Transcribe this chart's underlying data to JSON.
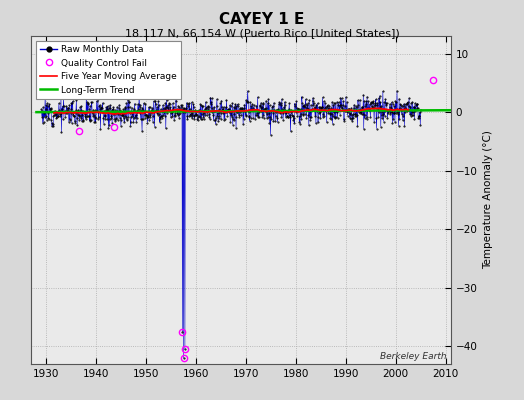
{
  "title": "CAYEY 1 E",
  "subtitle": "18.117 N, 66.154 W (Puerto Rico [United States])",
  "ylabel": "Temperature Anomaly (°C)",
  "watermark": "Berkeley Earth",
  "xlim": [
    1927,
    2011
  ],
  "ylim": [
    -43,
    13
  ],
  "yticks": [
    10,
    0,
    -10,
    -20,
    -30,
    -40
  ],
  "xticks": [
    1930,
    1940,
    1950,
    1960,
    1970,
    1980,
    1990,
    2000,
    2010
  ],
  "background_color": "#d8d8d8",
  "plot_background": "#eaeaea",
  "raw_line_color": "#0000cc",
  "raw_marker_color": "#000000",
  "qc_fail_color": "#ff00ff",
  "moving_avg_color": "#ff0000",
  "trend_color": "#00bb00",
  "noise_seed": 12,
  "data_start_year": 1929,
  "data_end_year": 2005,
  "spike_years": [
    1957.25,
    1957.5,
    1957.75
  ],
  "spike_values": [
    -37.5,
    -42.0,
    -40.5
  ],
  "qc_fail_points": [
    [
      1936.5,
      -3.2
    ],
    [
      1943.5,
      -2.5
    ],
    [
      1957.25,
      -37.5
    ],
    [
      1957.5,
      -42.0
    ],
    [
      1957.75,
      -40.5
    ],
    [
      2007.5,
      5.5
    ]
  ],
  "noise_std": 1.1,
  "moving_avg_window": 60,
  "trend_slope": 0.004
}
